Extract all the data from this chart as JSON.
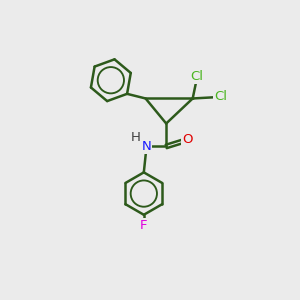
{
  "background_color": "#ebebeb",
  "bond_color": "#2d5a1b",
  "bond_width": 1.8,
  "atoms": {
    "Cl": {
      "color": "#4ab520",
      "fontsize": 9.5
    },
    "O": {
      "color": "#e00000",
      "fontsize": 9.5
    },
    "N": {
      "color": "#1a1aff",
      "fontsize": 9.5
    },
    "H": {
      "color": "#404040",
      "fontsize": 9.5
    },
    "F": {
      "color": "#e000e0",
      "fontsize": 9.5
    }
  },
  "figsize": [
    3.0,
    3.0
  ],
  "dpi": 100
}
